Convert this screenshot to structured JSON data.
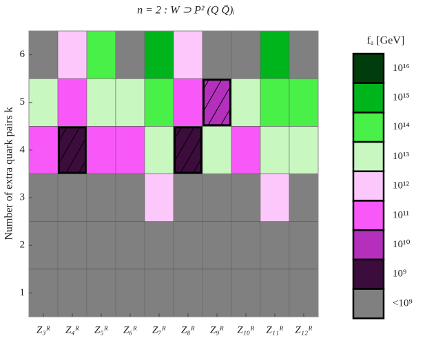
{
  "chart_data": {
    "type": "heatmap",
    "title": "n = 2 :   W ⊃ P² (Q Q̄)ᵢ",
    "y_label": "Number of extra quark pairs k",
    "x": [
      "Z₃ᴿ",
      "Z₄ᴿ",
      "Z₅ᴿ",
      "Z₆ᴿ",
      "Z₇ᴿ",
      "Z₈ᴿ",
      "Z₉ᴿ",
      "Z₁₀ᴿ",
      "Z₁₁ᴿ",
      "Z₁₂ᴿ"
    ],
    "y": [
      1,
      2,
      3,
      4,
      5,
      6
    ],
    "ylim": [
      0.5,
      6.5
    ],
    "yticks": [
      1,
      2,
      3,
      4,
      5,
      6
    ],
    "grid": true,
    "values": [
      [
        null,
        null,
        null,
        null,
        null,
        null,
        null,
        null,
        null,
        null
      ],
      [
        null,
        null,
        null,
        null,
        null,
        null,
        null,
        null,
        null,
        null
      ],
      [
        null,
        null,
        null,
        null,
        12,
        null,
        null,
        null,
        12,
        null
      ],
      [
        11,
        9,
        11,
        11,
        13,
        9,
        13,
        11,
        13,
        13
      ],
      [
        13,
        11,
        13,
        13,
        14,
        11,
        10,
        13,
        14,
        14
      ],
      [
        null,
        12,
        14,
        null,
        15,
        12,
        null,
        null,
        15,
        null
      ]
    ],
    "hatched": [
      [
        false,
        false,
        false,
        false,
        false,
        false,
        false,
        false,
        false,
        false
      ],
      [
        false,
        false,
        false,
        false,
        false,
        false,
        false,
        false,
        false,
        false
      ],
      [
        false,
        false,
        false,
        false,
        false,
        false,
        false,
        false,
        false,
        false
      ],
      [
        false,
        true,
        false,
        false,
        false,
        true,
        false,
        false,
        false,
        false
      ],
      [
        false,
        false,
        false,
        false,
        false,
        false,
        true,
        false,
        false,
        false
      ],
      [
        false,
        false,
        false,
        false,
        false,
        false,
        false,
        false,
        false,
        false
      ]
    ],
    "colorbar": {
      "title": "fₐ [GeV]",
      "levels": [
        {
          "value": 16,
          "label": "10¹⁶",
          "color": "#003c0c"
        },
        {
          "value": 15,
          "label": "10¹⁵",
          "color": "#00b41c"
        },
        {
          "value": 14,
          "label": "10¹⁴",
          "color": "#48f048"
        },
        {
          "value": 13,
          "label": "10¹³",
          "color": "#c8f8c0"
        },
        {
          "value": 12,
          "label": "10¹²",
          "color": "#fcc8fc"
        },
        {
          "value": 11,
          "label": "10¹¹",
          "color": "#f858f8"
        },
        {
          "value": 10,
          "label": "10¹⁰",
          "color": "#b430bc"
        },
        {
          "value": 9,
          "label": "10⁹",
          "color": "#3c0c3c"
        },
        {
          "value": null,
          "label": "<10⁹",
          "color": "#808080"
        }
      ]
    }
  }
}
